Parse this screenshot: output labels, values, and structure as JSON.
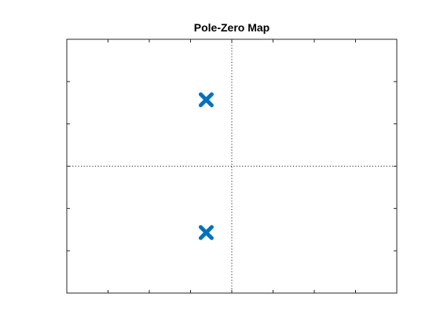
{
  "chart_data": {
    "type": "scatter",
    "title": "Pole-Zero Map",
    "xlabel": "",
    "ylabel": "",
    "xlim": [
      -4,
      4
    ],
    "ylim": [
      -3,
      3
    ],
    "xticks": [
      -4,
      -3,
      -2,
      -1,
      0,
      1,
      2,
      3,
      4
    ],
    "yticks": [
      -3,
      -2,
      -1,
      0,
      1,
      2,
      3
    ],
    "grid": false,
    "crosshair_axes": true,
    "series": [
      {
        "marker": "x",
        "color": "#0072BD",
        "points": [
          {
            "x": -0.62,
            "y": 1.57
          },
          {
            "x": -0.62,
            "y": -1.57
          }
        ]
      }
    ],
    "poles": [
      {
        "x": -0.62,
        "y": 1.57
      },
      {
        "x": -0.62,
        "y": -1.57
      }
    ],
    "zeros": []
  }
}
